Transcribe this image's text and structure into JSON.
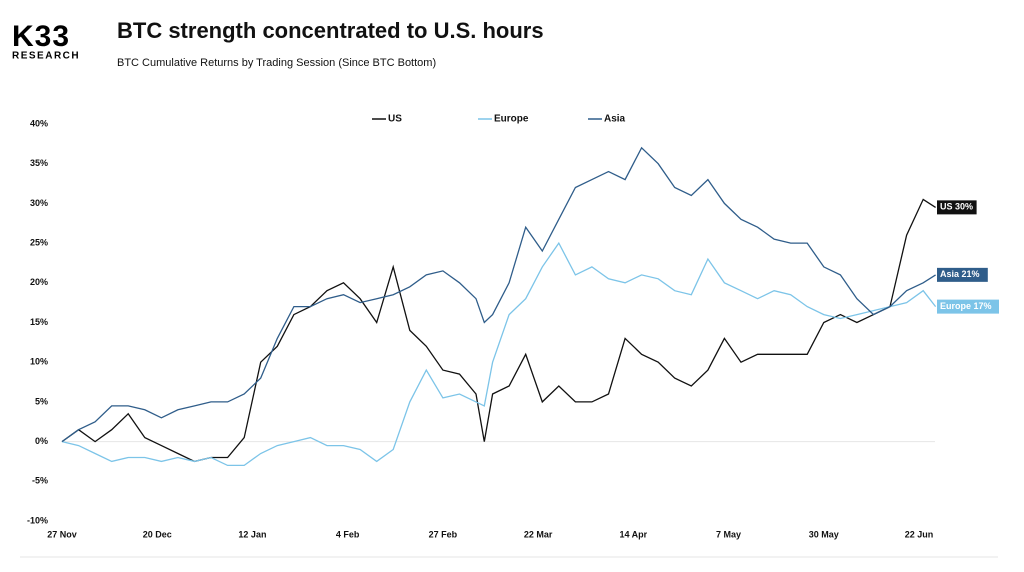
{
  "logo": {
    "mark": "K33",
    "sub": "RESEARCH"
  },
  "chart_data": {
    "type": "line",
    "title": "BTC strength concentrated to U.S. hours",
    "subtitle": "BTC Cumulative Returns by Trading Session (Since BTC Bottom)",
    "x": [
      0,
      4,
      8,
      12,
      16,
      20,
      24,
      28,
      32,
      36,
      40,
      44,
      48,
      52,
      56,
      60,
      64,
      68,
      72,
      76,
      80,
      84,
      88,
      92,
      96,
      100,
      102,
      104,
      108,
      112,
      116,
      120,
      124,
      128,
      132,
      136,
      140,
      144,
      148,
      152,
      156,
      160,
      164,
      168,
      172,
      176,
      180,
      184,
      188,
      192,
      196,
      200,
      204,
      208,
      211
    ],
    "xlim": [
      0,
      214
    ],
    "xticks": [
      {
        "value": 0,
        "label": "27 Nov"
      },
      {
        "value": 23,
        "label": "20 Dec"
      },
      {
        "value": 46,
        "label": "12 Jan"
      },
      {
        "value": 69,
        "label": "4 Feb"
      },
      {
        "value": 92,
        "label": "27 Feb"
      },
      {
        "value": 115,
        "label": "22 Mar"
      },
      {
        "value": 138,
        "label": "14 Apr"
      },
      {
        "value": 161,
        "label": "7 May"
      },
      {
        "value": 184,
        "label": "30 May"
      },
      {
        "value": 207,
        "label": "22 Jun"
      }
    ],
    "ylim": [
      -10,
      40
    ],
    "yticks": [
      {
        "value": -10,
        "label": "-10%"
      },
      {
        "value": -5,
        "label": "-5%"
      },
      {
        "value": 0,
        "label": "0%"
      },
      {
        "value": 5,
        "label": "5%"
      },
      {
        "value": 10,
        "label": "10%"
      },
      {
        "value": 15,
        "label": "15%"
      },
      {
        "value": 20,
        "label": "20%"
      },
      {
        "value": 25,
        "label": "25%"
      },
      {
        "value": 30,
        "label": "30%"
      },
      {
        "value": 35,
        "label": "35%"
      },
      {
        "value": 40,
        "label": "40%"
      }
    ],
    "series": [
      {
        "name": "US",
        "color": "#111111",
        "end_label": "US 30%",
        "values": [
          0,
          1.5,
          0,
          1.5,
          3.5,
          0.5,
          -0.5,
          -1.5,
          -2.5,
          -2,
          -2,
          0.5,
          10,
          12,
          16,
          17,
          19,
          20,
          18,
          15,
          22,
          14,
          12,
          9,
          8.5,
          6,
          0,
          6,
          7,
          11,
          5,
          7,
          5,
          5,
          6,
          13,
          11,
          10,
          8,
          7,
          9,
          13,
          10,
          11,
          11,
          11,
          11,
          15,
          16,
          15,
          16,
          17,
          26,
          30.5,
          29.5
        ]
      },
      {
        "name": "Europe",
        "color": "#7cc4e8",
        "end_label": "Europe 17%",
        "values": [
          0,
          -0.5,
          -1.5,
          -2.5,
          -2,
          -2,
          -2.5,
          -2,
          -2.5,
          -2,
          -3,
          -3,
          -1.5,
          -0.5,
          0,
          0.5,
          -0.5,
          -0.5,
          -1,
          -2.5,
          -1,
          5,
          9,
          5.5,
          6,
          5,
          4.5,
          10,
          16,
          18,
          22,
          25,
          21,
          22,
          20.5,
          20,
          21,
          20.5,
          19,
          18.5,
          23,
          20,
          19,
          18,
          19,
          18.5,
          17,
          16,
          15.5,
          16,
          16.5,
          17,
          17.5,
          19,
          17
        ]
      },
      {
        "name": "Asia",
        "color": "#2f5d8a",
        "end_label": "Asia 21%",
        "values": [
          0,
          1.5,
          2.5,
          4.5,
          4.5,
          4,
          3,
          4,
          4.5,
          5,
          5,
          6,
          8,
          13,
          17,
          17,
          18,
          18.5,
          17.5,
          18,
          18.5,
          19.5,
          21,
          21.5,
          20,
          18,
          15,
          16,
          20,
          27,
          24,
          28,
          32,
          33,
          34,
          33,
          37,
          35,
          32,
          31,
          33,
          30,
          28,
          27,
          25.5,
          25,
          25,
          22,
          21,
          18,
          16,
          17,
          19,
          20,
          21
        ]
      }
    ]
  }
}
